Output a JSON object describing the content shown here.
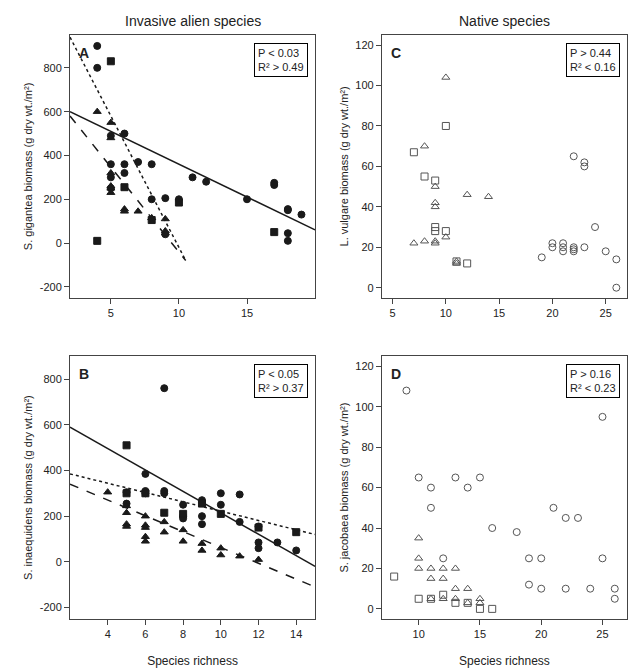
{
  "chart_data": [
    {
      "type": "scatter",
      "title": "Invasive alien species",
      "ylabel": "S. gigantea biomass (g dry wt./m²)",
      "annotations": [
        "A",
        "P < 0.03\nR² > 0.49"
      ],
      "xlim": [
        2,
        20
      ],
      "ylim": [
        -250,
        950
      ],
      "xticks": [
        5,
        10,
        15
      ],
      "yticks": [
        -200,
        0,
        200,
        400,
        600,
        800
      ],
      "grid": false,
      "series": [
        {
          "type": "scatter",
          "marker": "circle",
          "color": "#1a1a1a",
          "x": [
            4,
            4,
            5,
            5,
            5,
            5,
            6,
            6,
            6,
            7,
            8,
            8,
            9,
            9,
            10,
            11,
            12,
            15,
            17,
            17,
            18,
            18,
            18,
            18,
            19
          ],
          "values": [
            900,
            800,
            490,
            360,
            300,
            250,
            500,
            360,
            320,
            370,
            360,
            200,
            205,
            40,
            200,
            300,
            280,
            200,
            275,
            265,
            155,
            150,
            45,
            10,
            130
          ]
        },
        {
          "type": "scatter",
          "marker": "triangle-up",
          "color": "#1a1a1a",
          "x": [
            4,
            5,
            5,
            5,
            5,
            5,
            5,
            6,
            6,
            7,
            8,
            9,
            9,
            9
          ],
          "values": [
            600,
            550,
            480,
            320,
            260,
            250,
            230,
            155,
            145,
            145,
            115,
            110,
            55,
            45
          ]
        },
        {
          "type": "scatter",
          "marker": "square",
          "color": "#1a1a1a",
          "x": [
            4,
            5,
            6,
            8,
            10,
            17
          ],
          "values": [
            10,
            830,
            255,
            105,
            185,
            50
          ]
        },
        {
          "type": "line",
          "line_style": "solid",
          "color": "#1a1a1a",
          "x": [
            2,
            20
          ],
          "values": [
            600,
            60
          ]
        },
        {
          "type": "line",
          "line_style": "dashed",
          "color": "#1a1a1a",
          "x": [
            2,
            10.5
          ],
          "values": [
            580,
            -80
          ]
        },
        {
          "type": "line",
          "line_style": "dotted",
          "color": "#1a1a1a",
          "x": [
            2,
            10.5
          ],
          "values": [
            940,
            -80
          ]
        }
      ]
    },
    {
      "type": "scatter",
      "title": "Native species",
      "ylabel": "L. vulgare biomass (g dry wt./m²)",
      "annotations": [
        "C",
        "P > 0.44\nR² < 0.16"
      ],
      "xlim": [
        4,
        27
      ],
      "ylim": [
        -5,
        125
      ],
      "xticks": [
        5,
        10,
        15,
        20,
        25
      ],
      "yticks": [
        0,
        20,
        40,
        60,
        80,
        100,
        120
      ],
      "grid": false,
      "series": [
        {
          "type": "scatter",
          "marker": "circle-open",
          "color": "#555555",
          "x": [
            19,
            20,
            20,
            21,
            21,
            21,
            22,
            22,
            22,
            22,
            23,
            23,
            23,
            24,
            25,
            26,
            26
          ],
          "values": [
            15,
            22,
            20,
            22,
            20,
            18,
            65,
            20,
            19,
            18,
            62,
            60,
            20,
            30,
            18,
            14,
            0
          ]
        },
        {
          "type": "scatter",
          "marker": "triangle-up-open",
          "color": "#555555",
          "x": [
            7,
            8,
            8,
            9,
            9,
            9,
            9,
            9,
            10,
            10,
            11,
            11,
            12,
            14
          ],
          "values": [
            22,
            70,
            23,
            50,
            42,
            40,
            23,
            22,
            104,
            25,
            13,
            12,
            46,
            45
          ]
        },
        {
          "type": "scatter",
          "marker": "square-open",
          "color": "#555555",
          "x": [
            7,
            8,
            9,
            9,
            9,
            10,
            10,
            11,
            12
          ],
          "values": [
            67,
            55,
            53,
            30,
            28,
            80,
            28,
            13,
            12
          ]
        }
      ]
    },
    {
      "type": "scatter",
      "xlabel": "Species richness",
      "ylabel": "S. inaequidens biomass (g dry wt./m²)",
      "annotations": [
        "B",
        "P < 0.05\nR² > 0.37"
      ],
      "xlim": [
        2,
        15
      ],
      "ylim": [
        -250,
        900
      ],
      "xticks": [
        4,
        6,
        8,
        10,
        12,
        14
      ],
      "yticks": [
        -200,
        0,
        200,
        400,
        600,
        800
      ],
      "grid": false,
      "series": [
        {
          "type": "scatter",
          "marker": "circle",
          "color": "#1a1a1a",
          "x": [
            5,
            5,
            6,
            6,
            6,
            7,
            7,
            7,
            8,
            8,
            8,
            9,
            9,
            9,
            9,
            10,
            10,
            11,
            11,
            12,
            12,
            12,
            13,
            14
          ],
          "values": [
            305,
            255,
            385,
            310,
            300,
            760,
            310,
            300,
            250,
            200,
            190,
            270,
            260,
            200,
            165,
            300,
            250,
            295,
            175,
            155,
            85,
            60,
            85,
            50
          ]
        },
        {
          "type": "scatter",
          "marker": "triangle-up",
          "color": "#1a1a1a",
          "x": [
            4,
            5,
            5,
            5,
            5,
            6,
            6,
            6,
            6,
            6,
            7,
            7,
            8,
            8,
            9,
            9,
            10,
            10,
            11,
            12
          ],
          "values": [
            305,
            245,
            215,
            165,
            155,
            200,
            160,
            150,
            110,
            90,
            175,
            130,
            140,
            90,
            80,
            50,
            60,
            30,
            25,
            10
          ]
        },
        {
          "type": "scatter",
          "marker": "square",
          "color": "#1a1a1a",
          "x": [
            5,
            5,
            6,
            7,
            8,
            9,
            10,
            12,
            14
          ],
          "values": [
            510,
            300,
            300,
            215,
            210,
            255,
            210,
            150,
            130
          ]
        },
        {
          "type": "line",
          "line_style": "solid",
          "color": "#1a1a1a",
          "x": [
            2,
            15
          ],
          "values": [
            590,
            -20
          ]
        },
        {
          "type": "line",
          "line_style": "dashed",
          "color": "#1a1a1a",
          "x": [
            2,
            15
          ],
          "values": [
            340,
            -110
          ]
        },
        {
          "type": "line",
          "line_style": "dotted",
          "color": "#1a1a1a",
          "x": [
            2,
            15
          ],
          "values": [
            385,
            120
          ]
        }
      ]
    },
    {
      "type": "scatter",
      "xlabel": "Species richness",
      "ylabel": "S. jacobaea biomass (g dry wt./m²)",
      "annotations": [
        "D",
        "P > 0.16\nR² < 0.23"
      ],
      "xlim": [
        7,
        27
      ],
      "ylim": [
        -5,
        125
      ],
      "xticks": [
        10,
        15,
        20,
        25
      ],
      "yticks": [
        0,
        20,
        40,
        60,
        80,
        100,
        120
      ],
      "grid": false,
      "series": [
        {
          "type": "scatter",
          "marker": "circle-open",
          "color": "#555555",
          "x": [
            9,
            10,
            11,
            11,
            12,
            13,
            14,
            15,
            16,
            18,
            19,
            19,
            20,
            20,
            21,
            22,
            22,
            23,
            24,
            25,
            25,
            26,
            26
          ],
          "values": [
            108,
            65,
            60,
            50,
            25,
            65,
            60,
            65,
            40,
            38,
            25,
            12,
            25,
            10,
            50,
            45,
            10,
            45,
            10,
            95,
            25,
            10,
            5
          ]
        },
        {
          "type": "scatter",
          "marker": "triangle-up-open",
          "color": "#555555",
          "x": [
            10,
            10,
            10,
            11,
            11,
            11,
            12,
            12,
            12,
            13,
            13,
            13,
            14,
            14,
            15,
            15
          ],
          "values": [
            35,
            25,
            20,
            20,
            15,
            5,
            20,
            15,
            5,
            20,
            10,
            5,
            10,
            3,
            5,
            3
          ]
        },
        {
          "type": "scatter",
          "marker": "square-open",
          "color": "#555555",
          "x": [
            8,
            10,
            11,
            12,
            13,
            14,
            15,
            16
          ],
          "values": [
            16,
            5,
            5,
            7,
            3,
            3,
            0,
            0
          ]
        }
      ]
    }
  ]
}
